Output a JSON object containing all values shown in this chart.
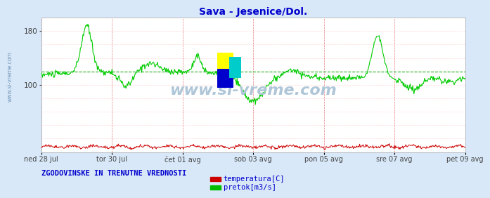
{
  "title": "Sava - Jesenice/Dol.",
  "title_color": "#0000cc",
  "bg_color": "#d8e8f8",
  "plot_bg_color": "#ffffff",
  "tick_labels": [
    "ned 28 jul",
    "tor 30 jul",
    "čet 01 avg",
    "sob 03 avg",
    "pon 05 avg",
    "sre 07 avg",
    "pet 09 avg"
  ],
  "dashed_line_color": "#00aa00",
  "dashed_line_y": 120,
  "ylim": [
    0,
    200
  ],
  "ytick_vals": [
    100,
    180
  ],
  "watermark": "www.si-vreme.com",
  "watermark_color": "#aec6d8",
  "side_text": "www.si-vreme.com",
  "footer_text": "ZGODOVINSKE IN TRENUTNE VREDNOSTI",
  "footer_color": "#0000cc",
  "legend_items": [
    "temperatura[C]",
    "pretok[m3/s]"
  ],
  "legend_colors": [
    "#cc0000",
    "#00bb00"
  ],
  "flow_color": "#00cc00",
  "temp_color": "#cc0000",
  "n_points": 672,
  "vline_color": "#cc0000",
  "hgrid_color": "#ffaaaa",
  "logo_yellow": "#ffff00",
  "logo_blue": "#0000cc",
  "logo_cyan": "#00cccc"
}
